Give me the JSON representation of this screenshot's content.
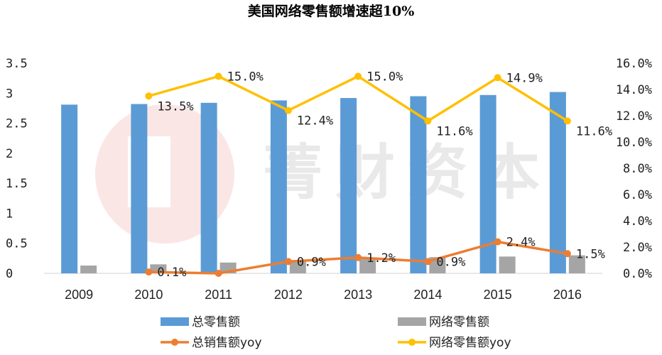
{
  "chart_data": {
    "type": "bar",
    "title": "美国网络零售额增速超10%",
    "categories": [
      "2009",
      "2010",
      "2011",
      "2012",
      "2013",
      "2014",
      "2015",
      "2016"
    ],
    "left_axis": {
      "ticks": [
        "0",
        "0.5",
        "1",
        "1.5",
        "2",
        "2.5",
        "3",
        "3.5"
      ],
      "ylim": [
        0,
        3.5
      ]
    },
    "right_axis": {
      "ticks": [
        "0.0%",
        "2.0%",
        "4.0%",
        "6.0%",
        "8.0%",
        "10.0%",
        "12.0%",
        "14.0%",
        "16.0%"
      ],
      "ylim": [
        0,
        16
      ]
    },
    "series": [
      {
        "name": "总零售额",
        "kind": "bar",
        "axis": "left",
        "color": "#5b9bd5",
        "values": [
          2.81,
          2.82,
          2.84,
          2.88,
          2.92,
          2.95,
          2.97,
          3.02
        ]
      },
      {
        "name": "网络零售额",
        "kind": "bar",
        "axis": "left",
        "color": "#a5a5a5",
        "values": [
          0.13,
          0.15,
          0.18,
          0.2,
          0.24,
          0.27,
          0.28,
          0.3
        ]
      },
      {
        "name": "总销售额yoy",
        "kind": "line",
        "axis": "right",
        "color": "#ed7d31",
        "values": [
          null,
          0.1,
          0.0,
          0.9,
          1.2,
          0.9,
          2.4,
          1.5
        ],
        "labels": [
          "",
          "0.1%",
          "",
          "0.9%",
          "1.2%",
          "0.9%",
          "2.4%",
          "1.5%"
        ]
      },
      {
        "name": "网络零售额yoy",
        "kind": "line",
        "axis": "right",
        "color": "#ffc000",
        "values": [
          null,
          13.5,
          15.0,
          12.4,
          15.0,
          11.6,
          14.9,
          11.6
        ],
        "labels": [
          "",
          "13.5%",
          "15.0%",
          "12.4%",
          "15.0%",
          "11.6%",
          "14.9%",
          "11.6%"
        ]
      }
    ],
    "legend": {
      "position": "bottom"
    },
    "grid": false,
    "watermark": "菁财资本"
  }
}
